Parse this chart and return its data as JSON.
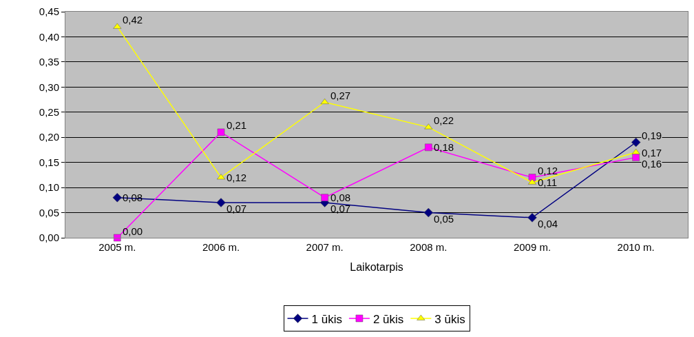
{
  "chart_data": {
    "type": "line",
    "xlabel": "Laikotarpis",
    "categories": [
      "2005 m.",
      "2006 m.",
      "2007 m.",
      "2008 m.",
      "2009 m.",
      "2010 m."
    ],
    "series": [
      {
        "name": "1 ūkis",
        "color": "#000080",
        "marker": "diamond",
        "values": [
          0.08,
          0.07,
          0.07,
          0.05,
          0.04,
          0.19
        ],
        "value_labels": [
          "0,08",
          "0,07",
          "0,07",
          "0,05",
          "0,04",
          "0,19"
        ]
      },
      {
        "name": "2 ūkis",
        "color": "#ff00ff",
        "marker": "square",
        "values": [
          0.0,
          0.21,
          0.08,
          0.18,
          0.12,
          0.16
        ],
        "value_labels": [
          "0,00",
          "0,21",
          "0,08",
          "0,18",
          "0,12",
          "0,16"
        ]
      },
      {
        "name": "3 ūkis",
        "color": "#ffff00",
        "marker": "triangle",
        "values": [
          0.42,
          0.12,
          0.27,
          0.22,
          0.11,
          0.17
        ],
        "value_labels": [
          "0,42",
          "0,12",
          "0,27",
          "0,22",
          "0,11",
          "0,17"
        ]
      }
    ],
    "ylim": [
      0,
      0.45
    ],
    "yticks": [
      {
        "value": 0,
        "label": "0,00"
      },
      {
        "value": 0.05,
        "label": "0,05"
      },
      {
        "value": 0.1,
        "label": "0,10"
      },
      {
        "value": 0.15,
        "label": "0,15"
      },
      {
        "value": 0.2,
        "label": "0,20"
      },
      {
        "value": 0.25,
        "label": "0,25"
      },
      {
        "value": 0.3,
        "label": "0,30"
      },
      {
        "value": 0.35,
        "label": "0,35"
      },
      {
        "value": 0.4,
        "label": "0,40"
      },
      {
        "value": 0.45,
        "label": "0,45"
      }
    ],
    "grid": "y",
    "legend": "bottom",
    "line_style": "solid"
  }
}
